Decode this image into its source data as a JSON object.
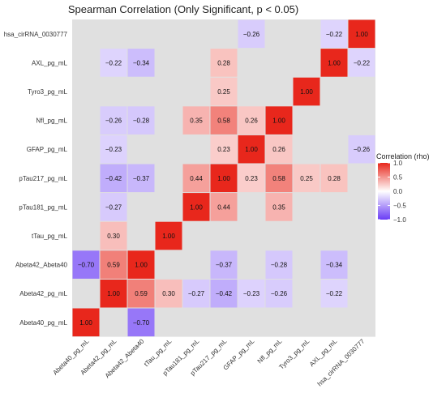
{
  "chart_data": {
    "type": "heatmap",
    "title": "Spearman Correlation (Only Significant, p < 0.05)",
    "x_labels": [
      "Abeta40_pg_mL",
      "Abeta42_pg_mL",
      "Abeta42_Abeta40",
      "tTau_pg_mL",
      "pTau181_pg_mL",
      "pTau217_pg_mL",
      "GFAP_pg_mL",
      "Nfl_pg_mL",
      "Tyro3_pg_mL",
      "AXL_pg_mL",
      "hsa_cirRNA_0030777"
    ],
    "y_labels": [
      "hsa_cirRNA_0030777",
      "AXL_pg_mL",
      "Tyro3_pg_mL",
      "Nfl_pg_mL",
      "GFAP_pg_mL",
      "pTau217_pg_mL",
      "pTau181_pg_mL",
      "tTau_pg_mL",
      "Abeta42_Abeta40",
      "Abeta42_pg_mL",
      "Abeta40_pg_mL"
    ],
    "values": [
      [
        null,
        null,
        null,
        null,
        null,
        null,
        -0.26,
        null,
        null,
        -0.22,
        1.0
      ],
      [
        null,
        -0.22,
        -0.34,
        null,
        null,
        0.28,
        null,
        null,
        null,
        1.0,
        -0.22
      ],
      [
        null,
        null,
        null,
        null,
        null,
        0.25,
        null,
        null,
        1.0,
        null,
        null
      ],
      [
        null,
        -0.26,
        -0.28,
        null,
        0.35,
        0.58,
        0.26,
        1.0,
        null,
        null,
        null
      ],
      [
        null,
        -0.23,
        null,
        null,
        null,
        0.23,
        1.0,
        0.26,
        null,
        null,
        -0.26
      ],
      [
        null,
        -0.42,
        -0.37,
        null,
        0.44,
        1.0,
        0.23,
        0.58,
        0.25,
        0.28,
        null
      ],
      [
        null,
        -0.27,
        null,
        null,
        1.0,
        0.44,
        null,
        0.35,
        null,
        null,
        null
      ],
      [
        null,
        0.3,
        null,
        1.0,
        null,
        null,
        null,
        null,
        null,
        null,
        null
      ],
      [
        -0.7,
        0.59,
        1.0,
        null,
        null,
        -0.37,
        null,
        -0.28,
        null,
        -0.34,
        null
      ],
      [
        null,
        1.0,
        0.59,
        0.3,
        -0.27,
        -0.42,
        -0.23,
        -0.26,
        null,
        -0.22,
        null
      ],
      [
        1.0,
        null,
        -0.7,
        null,
        null,
        null,
        null,
        null,
        null,
        null,
        null
      ]
    ],
    "color_scale": {
      "low": "#6a3cf5",
      "mid": "#ffffff",
      "high": "#e8271c",
      "missing": "#e0e0e0"
    },
    "legend": {
      "title": "Correlation (rho)",
      "ticks": [
        1.0,
        0.5,
        0.0,
        -0.5,
        -1.0
      ],
      "tick_labels": [
        "1.0",
        "0.5",
        "0.0",
        "−0.5",
        "−1.0"
      ],
      "position": "right"
    },
    "range": [
      -1,
      1
    ]
  }
}
